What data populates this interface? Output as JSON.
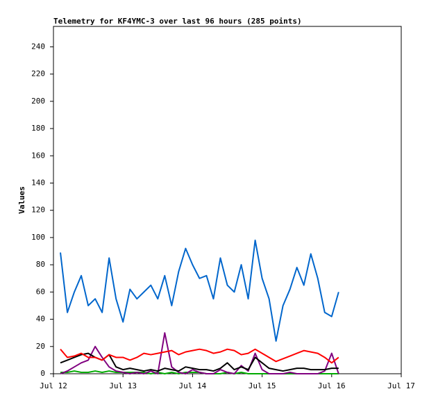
{
  "chart_data": {
    "type": "line",
    "title": "Telemetry for KF4YMC-3 over last 96 hours (285 points)",
    "y_label": "Values",
    "x": [
      12.1,
      12.2,
      12.3,
      12.4,
      12.5,
      12.6,
      12.7,
      12.8,
      12.9,
      13.0,
      13.1,
      13.2,
      13.3,
      13.4,
      13.5,
      13.6,
      13.7,
      13.8,
      13.9,
      14.0,
      14.1,
      14.2,
      14.3,
      14.4,
      14.5,
      14.6,
      14.7,
      14.8,
      14.9,
      15.0,
      15.1,
      15.2,
      15.3,
      15.4,
      15.5,
      15.6,
      15.7,
      15.8,
      15.9,
      16.0,
      16.1
    ],
    "series": [
      {
        "color": "#0066cc",
        "values": [
          89,
          45,
          60,
          72,
          50,
          55,
          45,
          85,
          55,
          38,
          62,
          55,
          60,
          65,
          55,
          72,
          50,
          75,
          92,
          80,
          70,
          72,
          55,
          85,
          65,
          60,
          80,
          55,
          98,
          70,
          55,
          24,
          50,
          62,
          78,
          65,
          88,
          70,
          45,
          42,
          60
        ]
      },
      {
        "color": "#ff0000",
        "values": [
          18,
          12,
          13,
          15,
          12,
          12,
          10,
          14,
          12,
          12,
          10,
          12,
          15,
          14,
          15,
          16,
          17,
          14,
          16,
          17,
          18,
          17,
          15,
          16,
          18,
          17,
          14,
          15,
          18,
          15,
          12,
          9,
          11,
          13,
          15,
          17,
          16,
          15,
          12,
          8,
          12
        ]
      },
      {
        "color": "#000000",
        "values": [
          8,
          10,
          12,
          14,
          15,
          12,
          10,
          14,
          5,
          3,
          4,
          3,
          2,
          3,
          2,
          4,
          3,
          2,
          5,
          4,
          3,
          3,
          2,
          4,
          8,
          3,
          5,
          3,
          12,
          8,
          4,
          3,
          2,
          3,
          4,
          4,
          3,
          3,
          3,
          4,
          4
        ]
      },
      {
        "color": "#800080",
        "values": [
          0,
          2,
          5,
          8,
          10,
          20,
          12,
          5,
          2,
          1,
          0,
          1,
          0,
          2,
          0,
          30,
          5,
          1,
          0,
          3,
          1,
          0,
          0,
          3,
          1,
          0,
          6,
          2,
          15,
          3,
          0,
          0,
          0,
          1,
          0,
          0,
          0,
          0,
          2,
          15,
          0
        ]
      },
      {
        "color": "#00aa00",
        "values": [
          1,
          1,
          2,
          1,
          1,
          2,
          1,
          2,
          1,
          1,
          1,
          1,
          1,
          0,
          1,
          0,
          1,
          0,
          1,
          1,
          1,
          0,
          0,
          0,
          1,
          0,
          1,
          0,
          0,
          0,
          0,
          0,
          0,
          0,
          0,
          0,
          0,
          0,
          0,
          0,
          0
        ]
      }
    ],
    "xlim": [
      12,
      17
    ],
    "xticks": [
      {
        "value": 12,
        "label": "Jul 12"
      },
      {
        "value": 13,
        "label": "Jul 13"
      },
      {
        "value": 14,
        "label": "Jul 14"
      },
      {
        "value": 15,
        "label": "Jul 15"
      },
      {
        "value": 16,
        "label": "Jul 16"
      },
      {
        "value": 17,
        "label": "Jul 17"
      }
    ],
    "ylim": [
      0,
      255
    ],
    "yticks": [
      0,
      20,
      40,
      60,
      80,
      100,
      120,
      140,
      160,
      180,
      200,
      220,
      240
    ],
    "grid": false
  }
}
